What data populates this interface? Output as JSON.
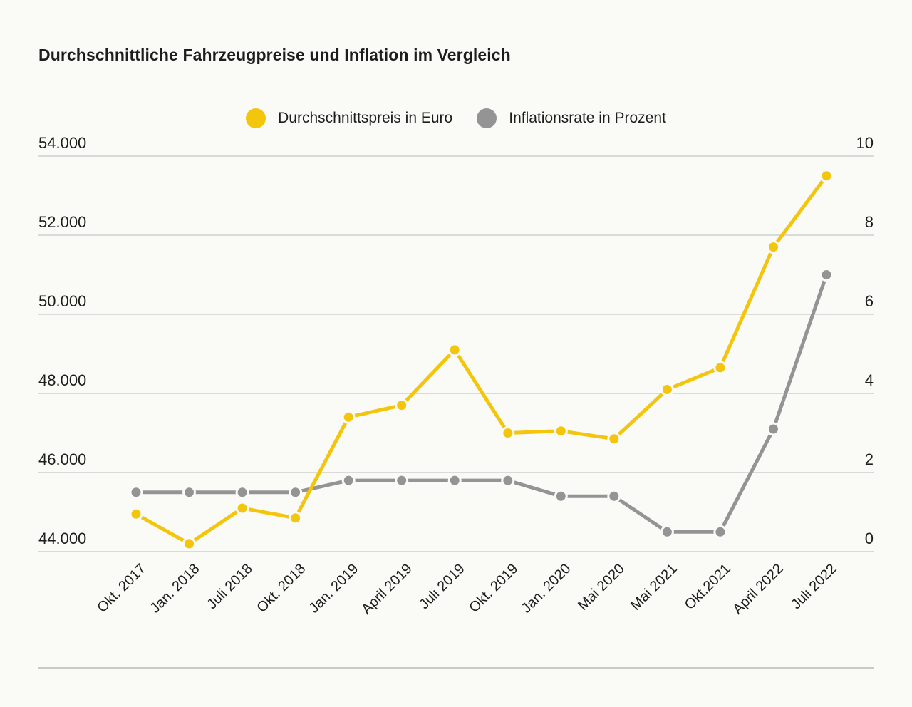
{
  "chart_data": {
    "type": "line",
    "title": "Durchschnittliche Fahrzeugpreise und Inflation im Vergleich",
    "categories": [
      "Okt. 2017",
      "Jan. 2018",
      "Juli 2018",
      "Okt. 2018",
      "Jan. 2019",
      "April 2019",
      "Juli 2019",
      "Okt. 2019",
      "Jan. 2020",
      "Mai 2020",
      "Mai 2021",
      "Okt.2021",
      "April 2022",
      "Juli 2022"
    ],
    "series": [
      {
        "name": "Durchschnittspreis in Euro",
        "axis": "left",
        "color": "#F4C50D",
        "values": [
          44950,
          44200,
          45100,
          44850,
          47400,
          47700,
          49100,
          47000,
          47050,
          46850,
          48100,
          48650,
          51700,
          53500
        ]
      },
      {
        "name": "Inflationsrate in Prozent",
        "axis": "right",
        "color": "#949494",
        "values": [
          1.5,
          1.5,
          1.5,
          1.5,
          1.8,
          1.8,
          1.8,
          1.8,
          1.4,
          1.4,
          0.5,
          0.5,
          3.1,
          7.0
        ]
      }
    ],
    "left_axis": {
      "min": 44000,
      "max": 54000,
      "tick_labels": [
        "54.000",
        "52.000",
        "50.000",
        "48.000",
        "46.000",
        "44.000"
      ]
    },
    "right_axis": {
      "min": 0,
      "max": 10,
      "tick_labels": [
        "10",
        "8",
        "6",
        "4",
        "2",
        "0"
      ]
    },
    "grid": true,
    "legend_position": "top"
  },
  "colors": {
    "background": "#FAFAF7",
    "gridline": "#D0D0CE",
    "divider": "#C9C9C6",
    "text": "#1D1D1B"
  }
}
